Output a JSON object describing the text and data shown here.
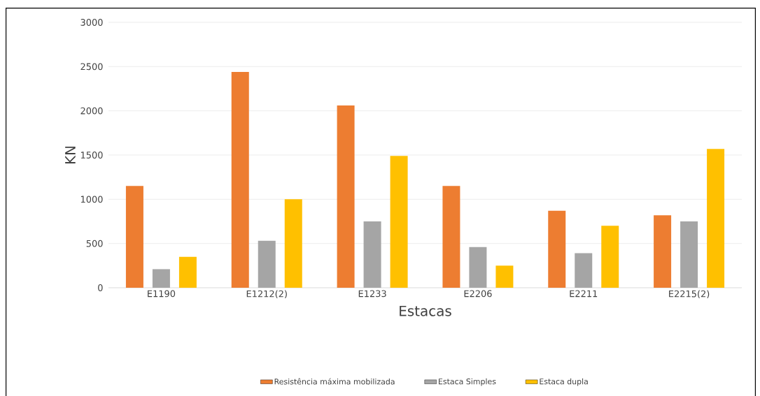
{
  "chart_data": {
    "type": "bar",
    "xlabel": "Estacas",
    "ylabel": "KN",
    "categories": [
      "E1190",
      "E1212(2)",
      "E1233",
      "E2206",
      "E2211",
      "E2215(2)"
    ],
    "series": [
      {
        "name": "Resistência máxima mobilizada",
        "color": "#ed7d31",
        "values": [
          1150,
          2440,
          2060,
          1150,
          870,
          820
        ]
      },
      {
        "name": "Estaca Simples",
        "color": "#a5a5a5",
        "values": [
          210,
          530,
          750,
          460,
          390,
          750
        ]
      },
      {
        "name": "Estaca dupla",
        "color": "#ffc000",
        "values": [
          350,
          1000,
          1490,
          250,
          700,
          1570
        ]
      }
    ],
    "ylim": [
      0,
      3000
    ],
    "yticks": [
      0,
      500,
      1000,
      1500,
      2000,
      2500,
      3000
    ],
    "grid": "y",
    "legend": "bottom"
  }
}
